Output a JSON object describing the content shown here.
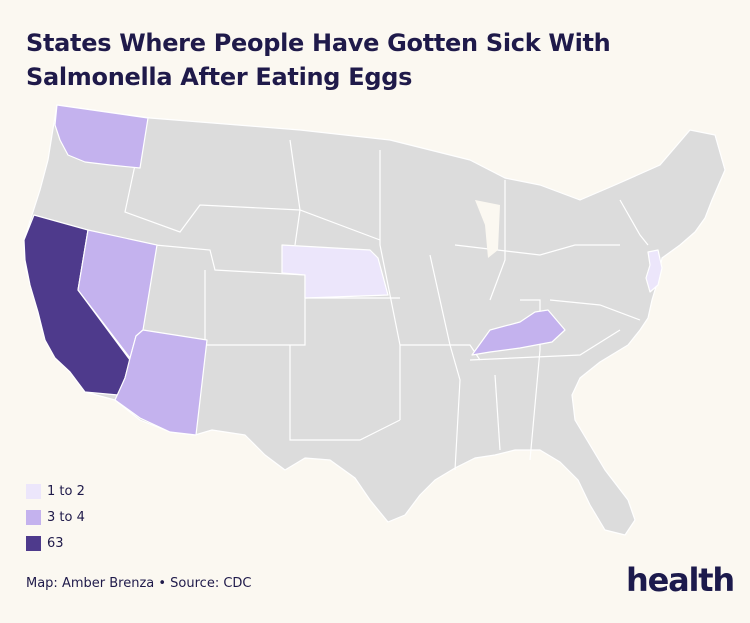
{
  "title": {
    "line1": "States Where People Have Gotten Sick With",
    "line2": "Salmonella After Eating Eggs"
  },
  "colors": {
    "background": "#fbf8f1",
    "no_cases": "#dcdcdc",
    "one_to_two": "#ece6fb",
    "three_to_four": "#c4b2ee",
    "sixty_three": "#4e3a8c"
  },
  "legend": [
    {
      "label": "1 to 2",
      "color": "#ece6fb"
    },
    {
      "label": "3 to 4",
      "color": "#c4b2ee"
    },
    {
      "label": "63",
      "color": "#4e3a8c"
    }
  ],
  "states_highlighted": [
    {
      "state": "California",
      "category": "63"
    },
    {
      "state": "Washington",
      "category": "3 to 4"
    },
    {
      "state": "Nevada",
      "category": "3 to 4"
    },
    {
      "state": "Arizona",
      "category": "3 to 4"
    },
    {
      "state": "Kentucky",
      "category": "3 to 4"
    },
    {
      "state": "Nebraska",
      "category": "1 to 2"
    },
    {
      "state": "New Jersey",
      "category": "1 to 2"
    }
  ],
  "footer": {
    "credit": "Map: Amber Brenza • Source: CDC"
  },
  "brand": {
    "logo": "health"
  }
}
